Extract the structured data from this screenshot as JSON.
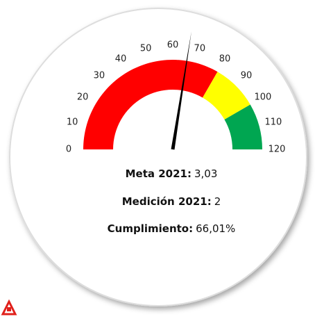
{
  "chart_data": {
    "type": "gauge",
    "ylim": [
      0,
      120
    ],
    "yticks": [
      0,
      10,
      20,
      30,
      40,
      50,
      60,
      70,
      80,
      90,
      100,
      110,
      120
    ],
    "bands": [
      {
        "from": 0,
        "to": 80,
        "color": "#ff0000"
      },
      {
        "from": 80,
        "to": 100,
        "color": "#ffff00"
      },
      {
        "from": 100,
        "to": 120,
        "color": "#00a651"
      }
    ],
    "needle_color": "#000000",
    "value": 66.01,
    "value_label": "66,01%",
    "stats": [
      {
        "label": "Meta 2021:",
        "value": "3,03"
      },
      {
        "label": "Medición 2021:",
        "value": "2"
      },
      {
        "label": "Cumplimiento:"
      }
    ]
  }
}
